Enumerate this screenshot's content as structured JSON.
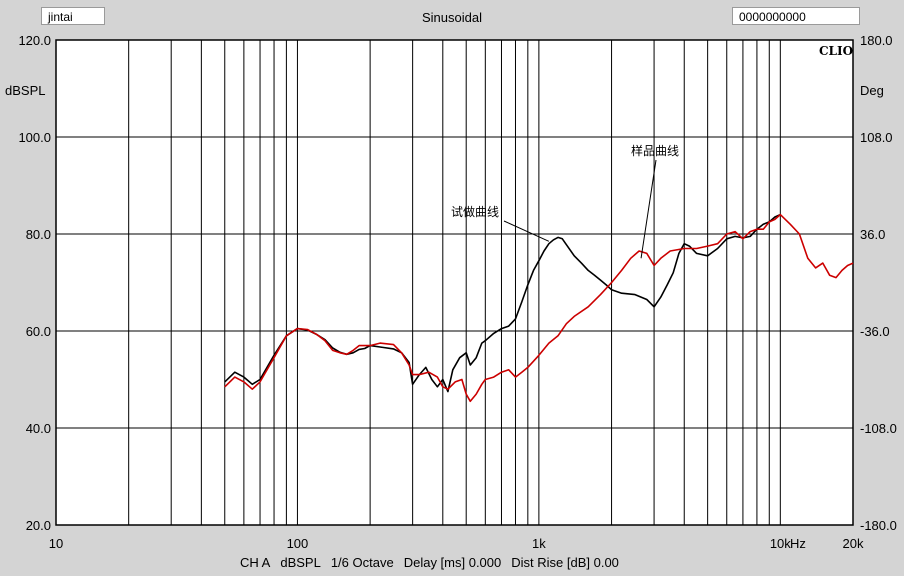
{
  "header": {
    "left_label": "jintai",
    "title": "Sinusoidal",
    "right_label": "0000000000",
    "logo": "CLIO"
  },
  "footer": {
    "channel": "CH A",
    "unit": "dBSPL",
    "smoothing": "1/6 Octave",
    "delay": "Delay [ms] 0.000",
    "dist_rise": "Dist Rise [dB] 0.00"
  },
  "chart_data": {
    "type": "line",
    "x_scale": "log",
    "xlim": [
      10,
      20000
    ],
    "ylim": [
      20,
      120
    ],
    "y2lim": [
      -180,
      180
    ],
    "grid": true,
    "ylabel": "dBSPL",
    "y2label": "Deg",
    "xunit": "Hz",
    "x_ticks": [
      {
        "value": 10,
        "label": "10"
      },
      {
        "value": 100,
        "label": "100"
      },
      {
        "value": 1000,
        "label": "1k"
      },
      {
        "value": 10000,
        "label": "10k"
      },
      {
        "value": 20000,
        "label": "20k"
      }
    ],
    "y_ticks": [
      {
        "value": 120,
        "label": "120.0"
      },
      {
        "value": 100,
        "label": "100.0"
      },
      {
        "value": 80,
        "label": "80.0"
      },
      {
        "value": 60,
        "label": "60.0"
      },
      {
        "value": 40,
        "label": "40.0"
      },
      {
        "value": 20,
        "label": "20.0"
      }
    ],
    "y2_ticks": [
      {
        "value": 180,
        "label": "180.0"
      },
      {
        "value": 108,
        "label": "108.0"
      },
      {
        "value": 36,
        "label": "36.0"
      },
      {
        "value": -36,
        "label": "-36.0"
      },
      {
        "value": -108,
        "label": "-108.0"
      },
      {
        "value": -180,
        "label": "-180.0"
      }
    ],
    "series": [
      {
        "name": "试做曲线",
        "color": "#000000",
        "points": [
          [
            50,
            49.5
          ],
          [
            55,
            51.5
          ],
          [
            60,
            50.5
          ],
          [
            65,
            49
          ],
          [
            70,
            50
          ],
          [
            80,
            55
          ],
          [
            90,
            59
          ],
          [
            100,
            60.5
          ],
          [
            110,
            60.2
          ],
          [
            120,
            59.3
          ],
          [
            130,
            58.2
          ],
          [
            140,
            56.5
          ],
          [
            150,
            55.6
          ],
          [
            160,
            55.2
          ],
          [
            170,
            55.5
          ],
          [
            180,
            56.2
          ],
          [
            190,
            56.4
          ],
          [
            200,
            57
          ],
          [
            220,
            56.7
          ],
          [
            250,
            56.3
          ],
          [
            270,
            55.5
          ],
          [
            290,
            53.5
          ],
          [
            300,
            49
          ],
          [
            320,
            51
          ],
          [
            340,
            52.5
          ],
          [
            360,
            50
          ],
          [
            380,
            48.5
          ],
          [
            400,
            50
          ],
          [
            420,
            47.5
          ],
          [
            440,
            52
          ],
          [
            470,
            54.5
          ],
          [
            500,
            55.5
          ],
          [
            520,
            53
          ],
          [
            550,
            54.5
          ],
          [
            580,
            57.5
          ],
          [
            600,
            58
          ],
          [
            650,
            59.5
          ],
          [
            700,
            60.5
          ],
          [
            750,
            61
          ],
          [
            800,
            62.5
          ],
          [
            850,
            66
          ],
          [
            900,
            69.5
          ],
          [
            950,
            72.5
          ],
          [
            1000,
            74.5
          ],
          [
            1050,
            76.5
          ],
          [
            1100,
            78
          ],
          [
            1150,
            78.8
          ],
          [
            1200,
            79.3
          ],
          [
            1250,
            79
          ],
          [
            1300,
            77.8
          ],
          [
            1400,
            75.5
          ],
          [
            1500,
            74
          ],
          [
            1600,
            72.5
          ],
          [
            1700,
            71.5
          ],
          [
            1800,
            70.5
          ],
          [
            1900,
            69.5
          ],
          [
            2000,
            68.5
          ],
          [
            2200,
            67.8
          ],
          [
            2500,
            67.5
          ],
          [
            2800,
            66.5
          ],
          [
            3000,
            65
          ],
          [
            3200,
            67
          ],
          [
            3400,
            69.5
          ],
          [
            3600,
            72
          ],
          [
            3800,
            76
          ],
          [
            4000,
            78
          ],
          [
            4200,
            77.5
          ],
          [
            4500,
            76
          ],
          [
            5000,
            75.5
          ],
          [
            5500,
            77
          ],
          [
            6000,
            79
          ],
          [
            6500,
            79.5
          ],
          [
            7000,
            79.2
          ],
          [
            7500,
            79.5
          ],
          [
            8000,
            81
          ],
          [
            8500,
            82
          ],
          [
            9000,
            82.5
          ],
          [
            9500,
            83.5
          ],
          [
            10000,
            84
          ]
        ]
      },
      {
        "name": "样品曲线",
        "color": "#cc0000",
        "points": [
          [
            50,
            48.5
          ],
          [
            55,
            50.5
          ],
          [
            60,
            49.5
          ],
          [
            65,
            48
          ],
          [
            70,
            49.5
          ],
          [
            80,
            54.5
          ],
          [
            90,
            59
          ],
          [
            100,
            60.5
          ],
          [
            110,
            60.3
          ],
          [
            120,
            59.3
          ],
          [
            130,
            58
          ],
          [
            140,
            56
          ],
          [
            150,
            55.5
          ],
          [
            160,
            55.2
          ],
          [
            170,
            56
          ],
          [
            180,
            57
          ],
          [
            200,
            57
          ],
          [
            220,
            57.5
          ],
          [
            250,
            57.2
          ],
          [
            270,
            55.5
          ],
          [
            290,
            53
          ],
          [
            300,
            51
          ],
          [
            320,
            51
          ],
          [
            350,
            51.5
          ],
          [
            380,
            50.5
          ],
          [
            400,
            48.5
          ],
          [
            420,
            48
          ],
          [
            450,
            49.5
          ],
          [
            480,
            50
          ],
          [
            500,
            47
          ],
          [
            520,
            45.5
          ],
          [
            550,
            47
          ],
          [
            580,
            49
          ],
          [
            600,
            50
          ],
          [
            650,
            50.5
          ],
          [
            700,
            51.5
          ],
          [
            750,
            52
          ],
          [
            800,
            50.5
          ],
          [
            850,
            51.5
          ],
          [
            900,
            52.5
          ],
          [
            1000,
            55
          ],
          [
            1100,
            57.5
          ],
          [
            1200,
            59
          ],
          [
            1300,
            61.5
          ],
          [
            1400,
            63
          ],
          [
            1600,
            65
          ],
          [
            1800,
            67.5
          ],
          [
            2000,
            70
          ],
          [
            2200,
            72.5
          ],
          [
            2400,
            75
          ],
          [
            2600,
            76.5
          ],
          [
            2800,
            76
          ],
          [
            3000,
            73.5
          ],
          [
            3200,
            75
          ],
          [
            3500,
            76.5
          ],
          [
            4000,
            77
          ],
          [
            4500,
            77
          ],
          [
            5000,
            77.5
          ],
          [
            5500,
            78
          ],
          [
            6000,
            80
          ],
          [
            6500,
            80.5
          ],
          [
            7000,
            79
          ],
          [
            7500,
            80.5
          ],
          [
            8000,
            81
          ],
          [
            8500,
            81
          ],
          [
            9000,
            82.5
          ],
          [
            9500,
            83
          ],
          [
            10000,
            84
          ],
          [
            11000,
            82
          ],
          [
            12000,
            80
          ],
          [
            13000,
            75
          ],
          [
            14000,
            73
          ],
          [
            15000,
            74
          ],
          [
            16000,
            71.5
          ],
          [
            17000,
            71
          ],
          [
            18000,
            72.5
          ],
          [
            19000,
            73.5
          ],
          [
            20000,
            74
          ]
        ]
      }
    ],
    "annotations": [
      {
        "text": "样品曲线",
        "anchor": [
          2650,
          75
        ]
      },
      {
        "text": "试做曲线",
        "anchor": [
          1100,
          78.5
        ]
      }
    ]
  }
}
